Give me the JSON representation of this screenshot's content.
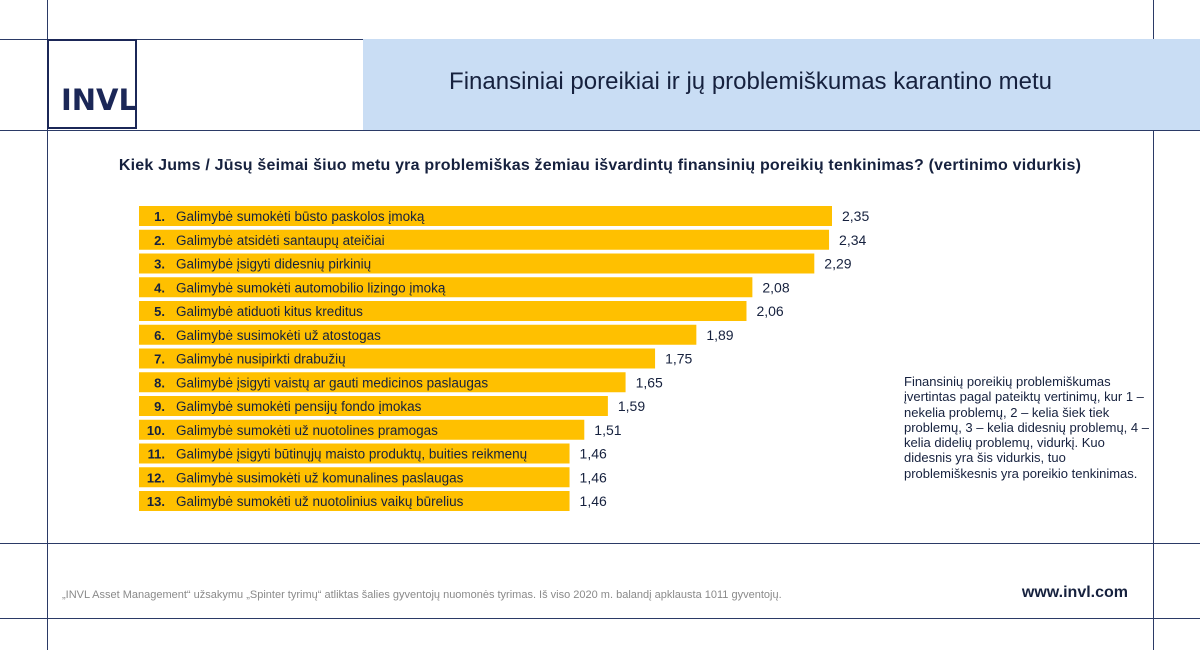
{
  "header": {
    "logo_text": "INVL",
    "title": "Finansiniai poreikiai ir jų problemiškumas karantino metu"
  },
  "question": "Kiek Jums / Jūsų šeimai šiuo metu yra problemiškas žemiau išvardintų finansinių poreikių tenkinimas? (vertinimo vidurkis)",
  "note": "Finansinių poreikių problemiškumas įvertintas pagal pateiktų vertinimų, kur 1 – nekelia problemų, 2 – kelia šiek tiek problemų, 3 – kelia didesnių problemų, 4 – kelia didelių problemų, vidurkį. Kuo didesnis yra šis vidurkis, tuo problemiškesnis yra poreikio tenkinimas.",
  "footer": {
    "source": "„INVL Asset Management“ užsakymu „Spinter tyrimų“ atliktas šalies gyventojų nuomonės tyrimas. Iš viso 2020 m. balandį apklausta 1011 gyventojų.",
    "url": "www.invl.com"
  },
  "colors": {
    "bar": "#ffc000",
    "navy": "#1b2757",
    "header_band": "#c9ddf4"
  },
  "chart_data": {
    "type": "bar",
    "orientation": "horizontal",
    "ranks": [
      "1.",
      "2.",
      "3.",
      "4.",
      "5.",
      "6.",
      "7.",
      "8.",
      "9.",
      "10.",
      "11.",
      "12.",
      "13."
    ],
    "categories": [
      "Galimybė sumokėti būsto paskolos įmoką",
      "Galimybė atsidėti santaupų ateičiai",
      "Galimybė įsigyti didesnių pirkinių",
      "Galimybė sumokėti automobilio lizingo įmoką",
      "Galimybė atiduoti kitus kreditus",
      "Galimybė susimokėti už atostogas",
      "Galimybė nusipirkti drabužių",
      "Galimybė įsigyti vaistų ar gauti medicinos paslaugas",
      "Galimybė sumokėti pensijų fondo įmokas",
      "Galimybė sumokėti už nuotolines pramogas",
      "Galimybė įsigyti būtinųjų maisto produktų, buities reikmenų",
      "Galimybė susimokėti už komunalines paslaugas",
      "Galimybė sumokėti už nuotolinius vaikų būrelius"
    ],
    "values": [
      2.35,
      2.34,
      2.29,
      2.08,
      2.06,
      1.89,
      1.75,
      1.65,
      1.59,
      1.51,
      1.46,
      1.46,
      1.46
    ],
    "value_labels": [
      "2,35",
      "2,34",
      "2,29",
      "2,08",
      "2,06",
      "1,89",
      "1,75",
      "1,65",
      "1,59",
      "1,51",
      "1,46",
      "1,46",
      "1,46"
    ],
    "xlim": [
      0,
      2.35
    ],
    "grid": false,
    "legend": "none"
  }
}
